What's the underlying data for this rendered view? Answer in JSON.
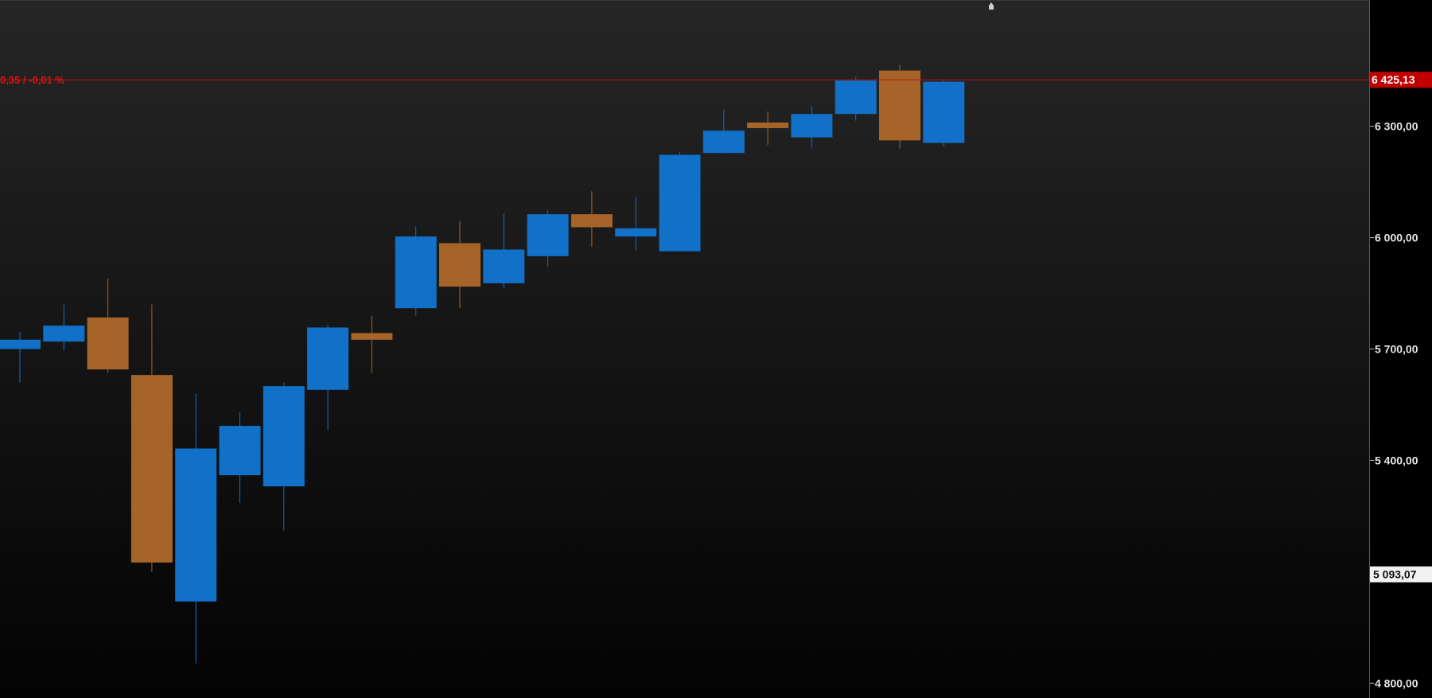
{
  "chart_data": {
    "type": "candlestick",
    "title": "",
    "xlabel": "",
    "ylabel": "",
    "ylim": [
      4760,
      6640
    ],
    "y_ticks": [
      {
        "value": 4800,
        "label": "4 800,00"
      },
      {
        "value": 5400,
        "label": "5 400,00"
      },
      {
        "value": 5700,
        "label": "5 700,00"
      },
      {
        "value": 6000,
        "label": "6 000,00"
      },
      {
        "value": 6300,
        "label": "6 300,00"
      }
    ],
    "last_price": {
      "value": 6425.13,
      "label": "6 425,13",
      "color": "#c00000"
    },
    "reference_price": {
      "value": 5093.07,
      "label": "5 093,07"
    },
    "change_text": "0,35 / -0,01 %",
    "colors": {
      "up": "#1170c8",
      "down": "#a66428",
      "background_top": "#202020",
      "background_bottom": "#000000",
      "price_line": "#c01010"
    },
    "candles": [
      {
        "open": 5700,
        "high": 5745,
        "low": 5610,
        "close": 5725
      },
      {
        "open": 5720,
        "high": 5820,
        "low": 5695,
        "close": 5763
      },
      {
        "open": 5785,
        "high": 5890,
        "low": 5635,
        "close": 5645
      },
      {
        "open": 5630,
        "high": 5820,
        "low": 5100,
        "close": 5125
      },
      {
        "open": 5020,
        "high": 5580,
        "low": 4853,
        "close": 5432
      },
      {
        "open": 5360,
        "high": 5530,
        "low": 5285,
        "close": 5493
      },
      {
        "open": 5330,
        "high": 5610,
        "low": 5210,
        "close": 5600
      },
      {
        "open": 5590,
        "high": 5765,
        "low": 5480,
        "close": 5758
      },
      {
        "open": 5743,
        "high": 5790,
        "low": 5635,
        "close": 5725
      },
      {
        "open": 5810,
        "high": 6030,
        "low": 5790,
        "close": 6003
      },
      {
        "open": 5985,
        "high": 6045,
        "low": 5810,
        "close": 5868
      },
      {
        "open": 5877,
        "high": 6065,
        "low": 5865,
        "close": 5968
      },
      {
        "open": 5950,
        "high": 6075,
        "low": 5920,
        "close": 6063
      },
      {
        "open": 6063,
        "high": 6125,
        "low": 5975,
        "close": 6028
      },
      {
        "open": 6003,
        "high": 6110,
        "low": 5965,
        "close": 6025
      },
      {
        "open": 5963,
        "high": 6230,
        "low": 5963,
        "close": 6223
      },
      {
        "open": 6228,
        "high": 6345,
        "low": 6228,
        "close": 6288
      },
      {
        "open": 6310,
        "high": 6340,
        "low": 6250,
        "close": 6295
      },
      {
        "open": 6270,
        "high": 6355,
        "low": 6240,
        "close": 6333
      },
      {
        "open": 6333,
        "high": 6433,
        "low": 6315,
        "close": 6423
      },
      {
        "open": 6450,
        "high": 6465,
        "low": 6240,
        "close": 6262
      },
      {
        "open": 6255,
        "high": 6425,
        "low": 6245,
        "close": 6420
      }
    ]
  }
}
